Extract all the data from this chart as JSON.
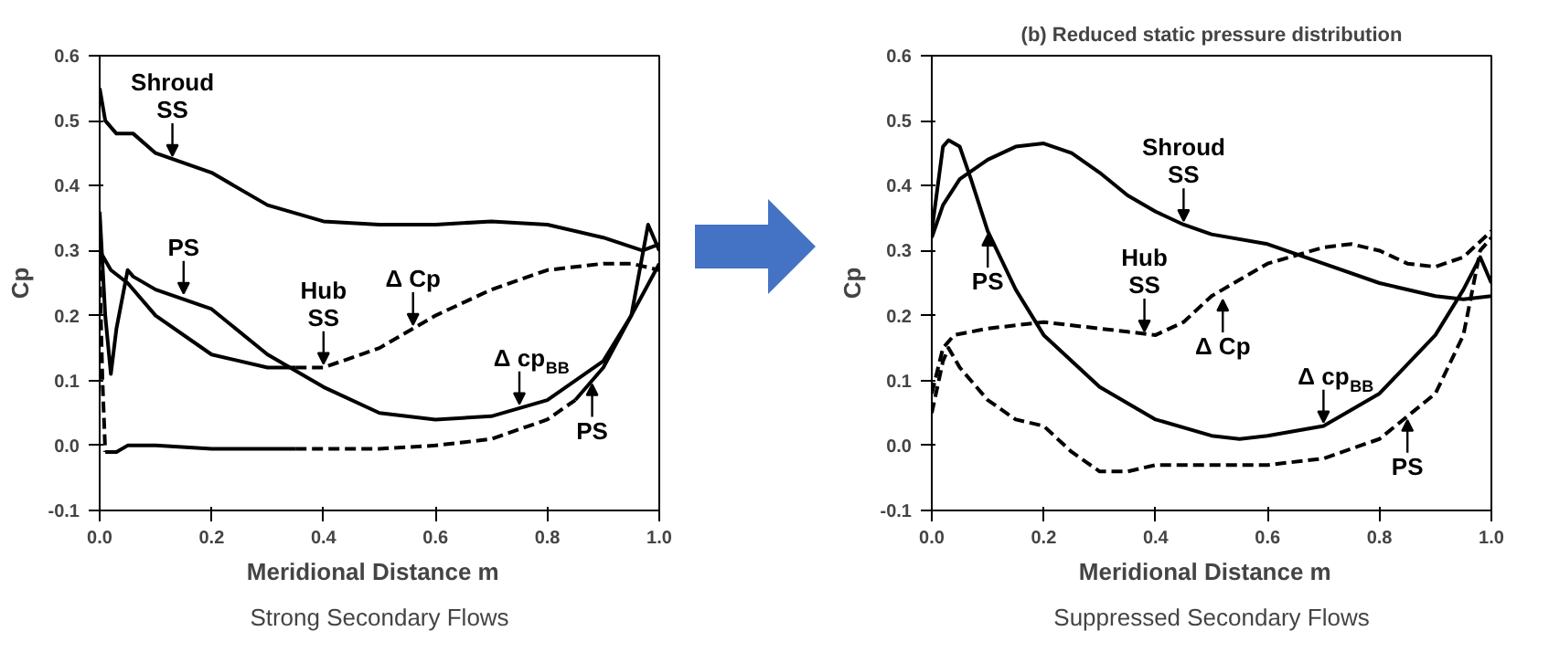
{
  "chart_data": [
    {
      "type": "line",
      "xlabel": "Meridional Distance   m",
      "ylabel": "Cp",
      "xlim": [
        0,
        1
      ],
      "ylim": [
        -0.1,
        0.6
      ],
      "xticks": [
        {
          "value": 0,
          "label": "0.0"
        },
        {
          "value": 0.2,
          "label": "0.2"
        },
        {
          "value": 0.4,
          "label": "0.4"
        },
        {
          "value": 0.6,
          "label": "0.6"
        },
        {
          "value": 0.8,
          "label": "0.8"
        },
        {
          "value": 1,
          "label": "1.0"
        }
      ],
      "yticks": [
        -0.1,
        {
          "value": 0,
          "label": "0.0"
        },
        0.1,
        0.2,
        0.3,
        0.4,
        0.5,
        0.6
      ],
      "grid": false,
      "series": [
        {
          "color": "#000000",
          "line_style": "solid",
          "x": [
            0,
            0.01,
            0.03,
            0.06,
            0.1,
            0.2,
            0.3,
            0.4,
            0.5,
            0.6,
            0.7,
            0.8,
            0.9,
            0.97,
            1.0
          ],
          "values": [
            0.55,
            0.5,
            0.48,
            0.48,
            0.45,
            0.42,
            0.37,
            0.345,
            0.34,
            0.34,
            0.345,
            0.34,
            0.32,
            0.3,
            0.31
          ]
        },
        {
          "color": "#000000",
          "line_style": "solid",
          "x": [
            0,
            0.01,
            0.02,
            0.03,
            0.05,
            0.06,
            0.1,
            0.2,
            0.3,
            0.4,
            0.5,
            0.6,
            0.7,
            0.8,
            0.9,
            0.95,
            0.98,
            1.0
          ],
          "values": [
            0.36,
            0.2,
            0.11,
            0.18,
            0.27,
            0.26,
            0.24,
            0.21,
            0.14,
            0.09,
            0.05,
            0.04,
            0.045,
            0.07,
            0.13,
            0.2,
            0.34,
            0.3
          ]
        },
        {
          "color": "#000000",
          "line_style": "solid",
          "x": [
            0,
            0.02,
            0.05,
            0.1,
            0.2,
            0.3,
            0.35
          ],
          "values": [
            0.3,
            0.27,
            0.25,
            0.2,
            0.14,
            0.12,
            0.12
          ]
        },
        {
          "color": "#000000",
          "line_style": "dashed",
          "x": [
            0.35,
            0.4,
            0.5,
            0.6,
            0.7,
            0.8,
            0.9,
            0.95,
            1.0
          ],
          "values": [
            0.12,
            0.12,
            0.15,
            0.2,
            0.24,
            0.27,
            0.28,
            0.28,
            0.27
          ]
        },
        {
          "color": "#000000",
          "line_style": "dashed",
          "x": [
            0,
            0.005,
            0.01
          ],
          "values": [
            0.27,
            0.1,
            -0.01
          ]
        },
        {
          "color": "#000000",
          "line_style": "solid",
          "x": [
            0.01,
            0.02,
            0.03,
            0.05,
            0.1,
            0.2,
            0.3,
            0.35
          ],
          "values": [
            -0.01,
            -0.01,
            -0.01,
            0.0,
            0.0,
            -0.005,
            -0.005,
            -0.005
          ]
        },
        {
          "color": "#000000",
          "line_style": "dashed",
          "x": [
            0.35,
            0.4,
            0.5,
            0.6,
            0.7,
            0.8,
            0.85
          ],
          "values": [
            -0.005,
            -0.005,
            -0.005,
            0.0,
            0.01,
            0.04,
            0.07
          ]
        },
        {
          "color": "#000000",
          "line_style": "solid",
          "x": [
            0.85,
            0.9,
            0.95,
            1.0
          ],
          "values": [
            0.07,
            0.12,
            0.2,
            0.28
          ]
        }
      ],
      "annotations": [
        {
          "text": "Shroud\nSS",
          "x": 0.13,
          "y": 0.44
        },
        {
          "text": "PS",
          "x": 0.15,
          "y": 0.228
        },
        {
          "text": "Δ Cp",
          "x": 0.56,
          "y": 0.18
        },
        {
          "text": "Δ cp$_{BB}$",
          "x": 0.75,
          "y": 0.058
        },
        {
          "text": "Hub\nSS",
          "x": 0.4,
          "y": 0.12
        },
        {
          "text": "PS",
          "x": 0.88,
          "y": 0.1
        },
        "Strong Secondary Flows"
      ]
    },
    {
      "type": "line",
      "title": "(b) Reduced static pressure distribution",
      "xlabel": "Meridional Distance   m",
      "ylabel": "Cp",
      "xlim": [
        0,
        1
      ],
      "ylim": [
        -0.1,
        0.6
      ],
      "xticks": [
        {
          "value": 0,
          "label": "0.0"
        },
        {
          "value": 0.2,
          "label": "0.2"
        },
        {
          "value": 0.4,
          "label": "0.4"
        },
        {
          "value": 0.6,
          "label": "0.6"
        },
        {
          "value": 0.8,
          "label": "0.8"
        },
        {
          "value": 1,
          "label": "1.0"
        }
      ],
      "yticks": [
        -0.1,
        {
          "value": 0,
          "label": "0.0"
        },
        0.1,
        0.2,
        0.3,
        0.4,
        0.5,
        0.6
      ],
      "grid": false,
      "series": [
        {
          "color": "#000000",
          "line_style": "solid",
          "x": [
            0,
            0.02,
            0.05,
            0.1,
            0.15,
            0.2,
            0.25,
            0.3,
            0.35,
            0.4,
            0.45,
            0.5,
            0.6,
            0.7,
            0.8,
            0.9,
            0.95,
            1.0
          ],
          "values": [
            0.32,
            0.37,
            0.41,
            0.44,
            0.46,
            0.465,
            0.45,
            0.42,
            0.385,
            0.36,
            0.34,
            0.325,
            0.31,
            0.28,
            0.25,
            0.23,
            0.225,
            0.23
          ]
        },
        {
          "color": "#000000",
          "line_style": "solid",
          "x": [
            0,
            0.02,
            0.03,
            0.05,
            0.07,
            0.1,
            0.15,
            0.2,
            0.3,
            0.4,
            0.5,
            0.55,
            0.6,
            0.7,
            0.8,
            0.9,
            0.95,
            0.98,
            1.0
          ],
          "values": [
            0.33,
            0.46,
            0.47,
            0.46,
            0.41,
            0.33,
            0.24,
            0.17,
            0.09,
            0.04,
            0.015,
            0.01,
            0.015,
            0.03,
            0.08,
            0.17,
            0.24,
            0.29,
            0.25
          ]
        },
        {
          "color": "#000000",
          "line_style": "dashed",
          "x": [
            0,
            0.02,
            0.04,
            0.1,
            0.2,
            0.3,
            0.35,
            0.4,
            0.45,
            0.5,
            0.6,
            0.7,
            0.75,
            0.8,
            0.85,
            0.9,
            0.95,
            1.0
          ],
          "values": [
            0.08,
            0.15,
            0.17,
            0.18,
            0.19,
            0.18,
            0.175,
            0.17,
            0.19,
            0.23,
            0.28,
            0.305,
            0.31,
            0.3,
            0.28,
            0.275,
            0.29,
            0.33
          ]
        },
        {
          "color": "#000000",
          "line_style": "dashed",
          "x": [
            0,
            0.02,
            0.03,
            0.05,
            0.1,
            0.15,
            0.2,
            0.25,
            0.3,
            0.35,
            0.4,
            0.5,
            0.6,
            0.7,
            0.8,
            0.9,
            0.95,
            0.98,
            1.0
          ],
          "values": [
            0.05,
            0.13,
            0.15,
            0.12,
            0.07,
            0.04,
            0.03,
            -0.01,
            -0.04,
            -0.04,
            -0.03,
            -0.03,
            -0.03,
            -0.02,
            0.01,
            0.08,
            0.17,
            0.3,
            0.32
          ]
        }
      ],
      "annotations": [
        {
          "text": "Shroud\nSS",
          "x": 0.45,
          "y": 0.34
        },
        {
          "text": "PS",
          "x": 0.1,
          "y": 0.33
        },
        {
          "text": "Δ Cp",
          "x": 0.52,
          "y": 0.23
        },
        {
          "text": "Δ cp$_{BB}$",
          "x": 0.7,
          "y": 0.03
        },
        {
          "text": "Hub\nSS",
          "x": 0.38,
          "y": 0.17
        },
        {
          "text": "PS",
          "x": 0.85,
          "y": 0.045
        },
        "Suppressed Secondary Flows"
      ]
    }
  ]
}
